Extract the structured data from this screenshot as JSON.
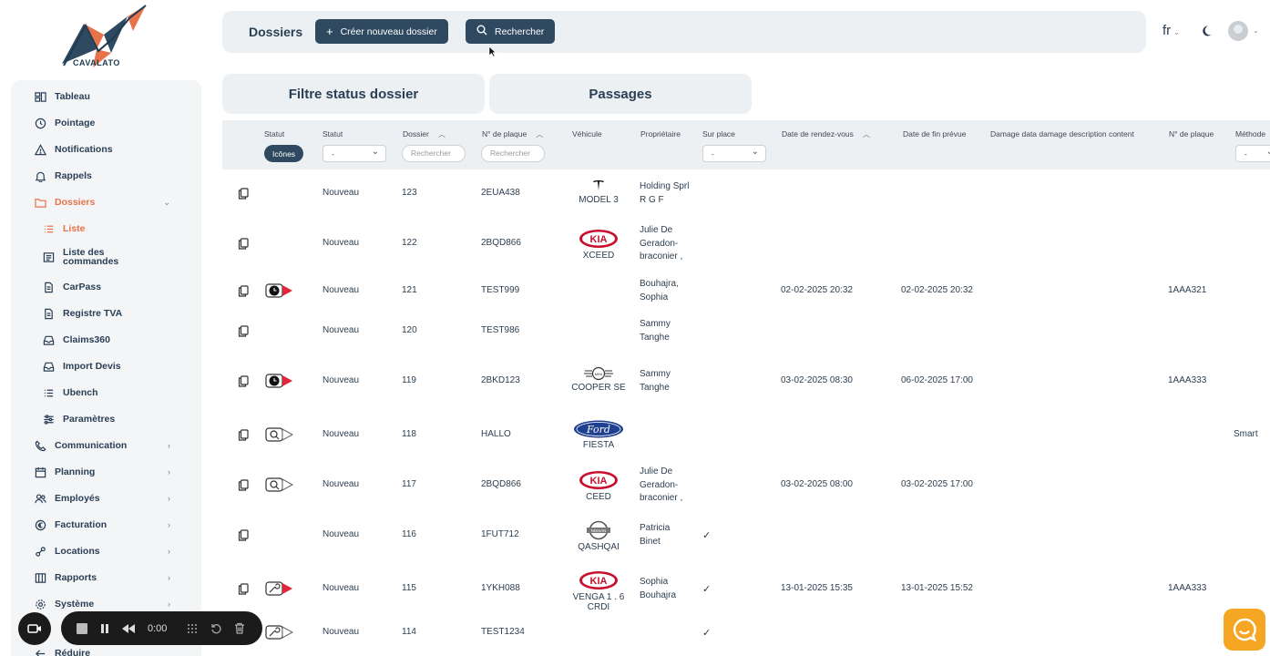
{
  "brand": {
    "name": "CAVALATO",
    "accent": "#e8734a"
  },
  "sidebar": {
    "items": [
      {
        "label": "Tableau",
        "icon": "dashboard-icon"
      },
      {
        "label": "Pointage",
        "icon": "clock-icon"
      },
      {
        "label": "Notifications",
        "icon": "warning-icon"
      },
      {
        "label": "Rappels",
        "icon": "bell-icon"
      },
      {
        "label": "Dossiers",
        "icon": "folder-icon"
      },
      {
        "label": "Liste",
        "icon": "list-icon"
      },
      {
        "label": "Liste des commandes",
        "icon": "orders-icon"
      },
      {
        "label": "CarPass",
        "icon": "document-icon"
      },
      {
        "label": "Registre TVA",
        "icon": "document-icon"
      },
      {
        "label": "Claims360",
        "icon": "inbox-icon"
      },
      {
        "label": "Import Devis",
        "icon": "inbox-icon"
      },
      {
        "label": "Ubench",
        "icon": "list-icon"
      },
      {
        "label": "Paramètres",
        "icon": "sliders-icon"
      },
      {
        "label": "Communication",
        "icon": "phone-icon"
      },
      {
        "label": "Planning",
        "icon": "calendar-icon"
      },
      {
        "label": "Employés",
        "icon": "users-icon"
      },
      {
        "label": "Facturation",
        "icon": "euro-icon"
      },
      {
        "label": "Locations",
        "icon": "car-icon"
      },
      {
        "label": "Rapports",
        "icon": "book-icon"
      },
      {
        "label": "Système",
        "icon": "gear-icon"
      },
      {
        "label": "Réduire",
        "icon": "arrow-left-icon"
      }
    ]
  },
  "topbar": {
    "title": "Dossiers",
    "create_label": "Créer nouveau dossier",
    "search_label": "Rechercher",
    "language": "fr"
  },
  "tabs": [
    "Filtre status dossier",
    "Passages"
  ],
  "table": {
    "headers": {
      "statut_icons": "Statut",
      "statut": "Statut",
      "dossier": "Dossier",
      "plaque": "N° de plaque",
      "vehicule": "Véhicule",
      "proprietaire": "Propriétaire",
      "sur_place": "Sur place",
      "rdv": "Date de rendez-vous",
      "fin": "Date de fin prévue",
      "damage": "Damage data damage description content",
      "plaque2": "N° de plaque",
      "methode": "Méthode"
    },
    "filters": {
      "icons_pill": "Icônes",
      "statut_select": "-",
      "dossier_placeholder": "Rechercher",
      "plaque_placeholder": "Rechercher",
      "sur_place_select": "-",
      "methode_select": "-"
    },
    "rows": [
      {
        "status_icon": "",
        "statut": "Nouveau",
        "dossier": "123",
        "plaque": "2EUA438",
        "brand": "tesla",
        "model": "MODEL 3",
        "owner": "Holding Sprl R G F",
        "sur_place": "",
        "rdv": "",
        "fin": "",
        "plaque2": "",
        "methode": ""
      },
      {
        "status_icon": "",
        "statut": "Nouveau",
        "dossier": "122",
        "plaque": "2BQD866",
        "brand": "kia",
        "model": "XCEED",
        "owner": "Julie De Geradon-braconier ,",
        "sur_place": "",
        "rdv": "",
        "fin": "",
        "plaque2": "",
        "methode": ""
      },
      {
        "status_icon": "clock-flag",
        "statut": "Nouveau",
        "dossier": "121",
        "plaque": "TEST999",
        "brand": "",
        "model": "",
        "owner": "Bouhajra, Sophia",
        "sur_place": "",
        "rdv": "02-02-2025 20:32",
        "fin": "02-02-2025 20:32",
        "plaque2": "1AAA321",
        "methode": ""
      },
      {
        "status_icon": "",
        "statut": "Nouveau",
        "dossier": "120",
        "plaque": "TEST986",
        "brand": "",
        "model": "",
        "owner": "Sammy Tanghe",
        "sur_place": "",
        "rdv": "",
        "fin": "",
        "plaque2": "",
        "methode": ""
      },
      {
        "status_icon": "clock-flag",
        "statut": "Nouveau",
        "dossier": "119",
        "plaque": "2BKD123",
        "brand": "mini",
        "model": "COOPER SE",
        "owner": "Sammy Tanghe",
        "sur_place": "",
        "rdv": "03-02-2025 08:30",
        "fin": "06-02-2025 17:00",
        "plaque2": "1AAA333",
        "methode": ""
      },
      {
        "status_icon": "search-flag",
        "statut": "Nouveau",
        "dossier": "118",
        "plaque": "HALLO",
        "brand": "ford",
        "model": "FIESTA",
        "owner": "",
        "sur_place": "",
        "rdv": "",
        "fin": "",
        "plaque2": "",
        "methode": "Smart"
      },
      {
        "status_icon": "search-flag",
        "statut": "Nouveau",
        "dossier": "117",
        "plaque": "2BQD866",
        "brand": "kia",
        "model": "CEED",
        "owner": "Julie De Geradon-braconier ,",
        "sur_place": "",
        "rdv": "03-02-2025 08:00",
        "fin": "03-02-2025 17:00",
        "plaque2": "",
        "methode": ""
      },
      {
        "status_icon": "",
        "statut": "Nouveau",
        "dossier": "116",
        "plaque": "1FUT712",
        "brand": "nissan",
        "model": "QASHQAI",
        "owner": "Patricia Binet",
        "sur_place": "✓",
        "rdv": "",
        "fin": "",
        "plaque2": "",
        "methode": ""
      },
      {
        "status_icon": "wrench-flag",
        "statut": "Nouveau",
        "dossier": "115",
        "plaque": "1YKH088",
        "brand": "kia",
        "model": "VENGA 1 . 6 CRDI",
        "owner": "Sophia Bouhajra",
        "sur_place": "✓",
        "rdv": "13-01-2025 15:35",
        "fin": "13-01-2025 15:52",
        "plaque2": "1AAA333",
        "methode": ""
      },
      {
        "status_icon": "wrench-gray",
        "statut": "Nouveau",
        "dossier": "114",
        "plaque": "TEST1234",
        "brand": "",
        "model": "",
        "owner": "",
        "sur_place": "✓",
        "rdv": "",
        "fin": "",
        "plaque2": "",
        "methode": ""
      }
    ]
  },
  "recorder": {
    "time": "0:00"
  }
}
